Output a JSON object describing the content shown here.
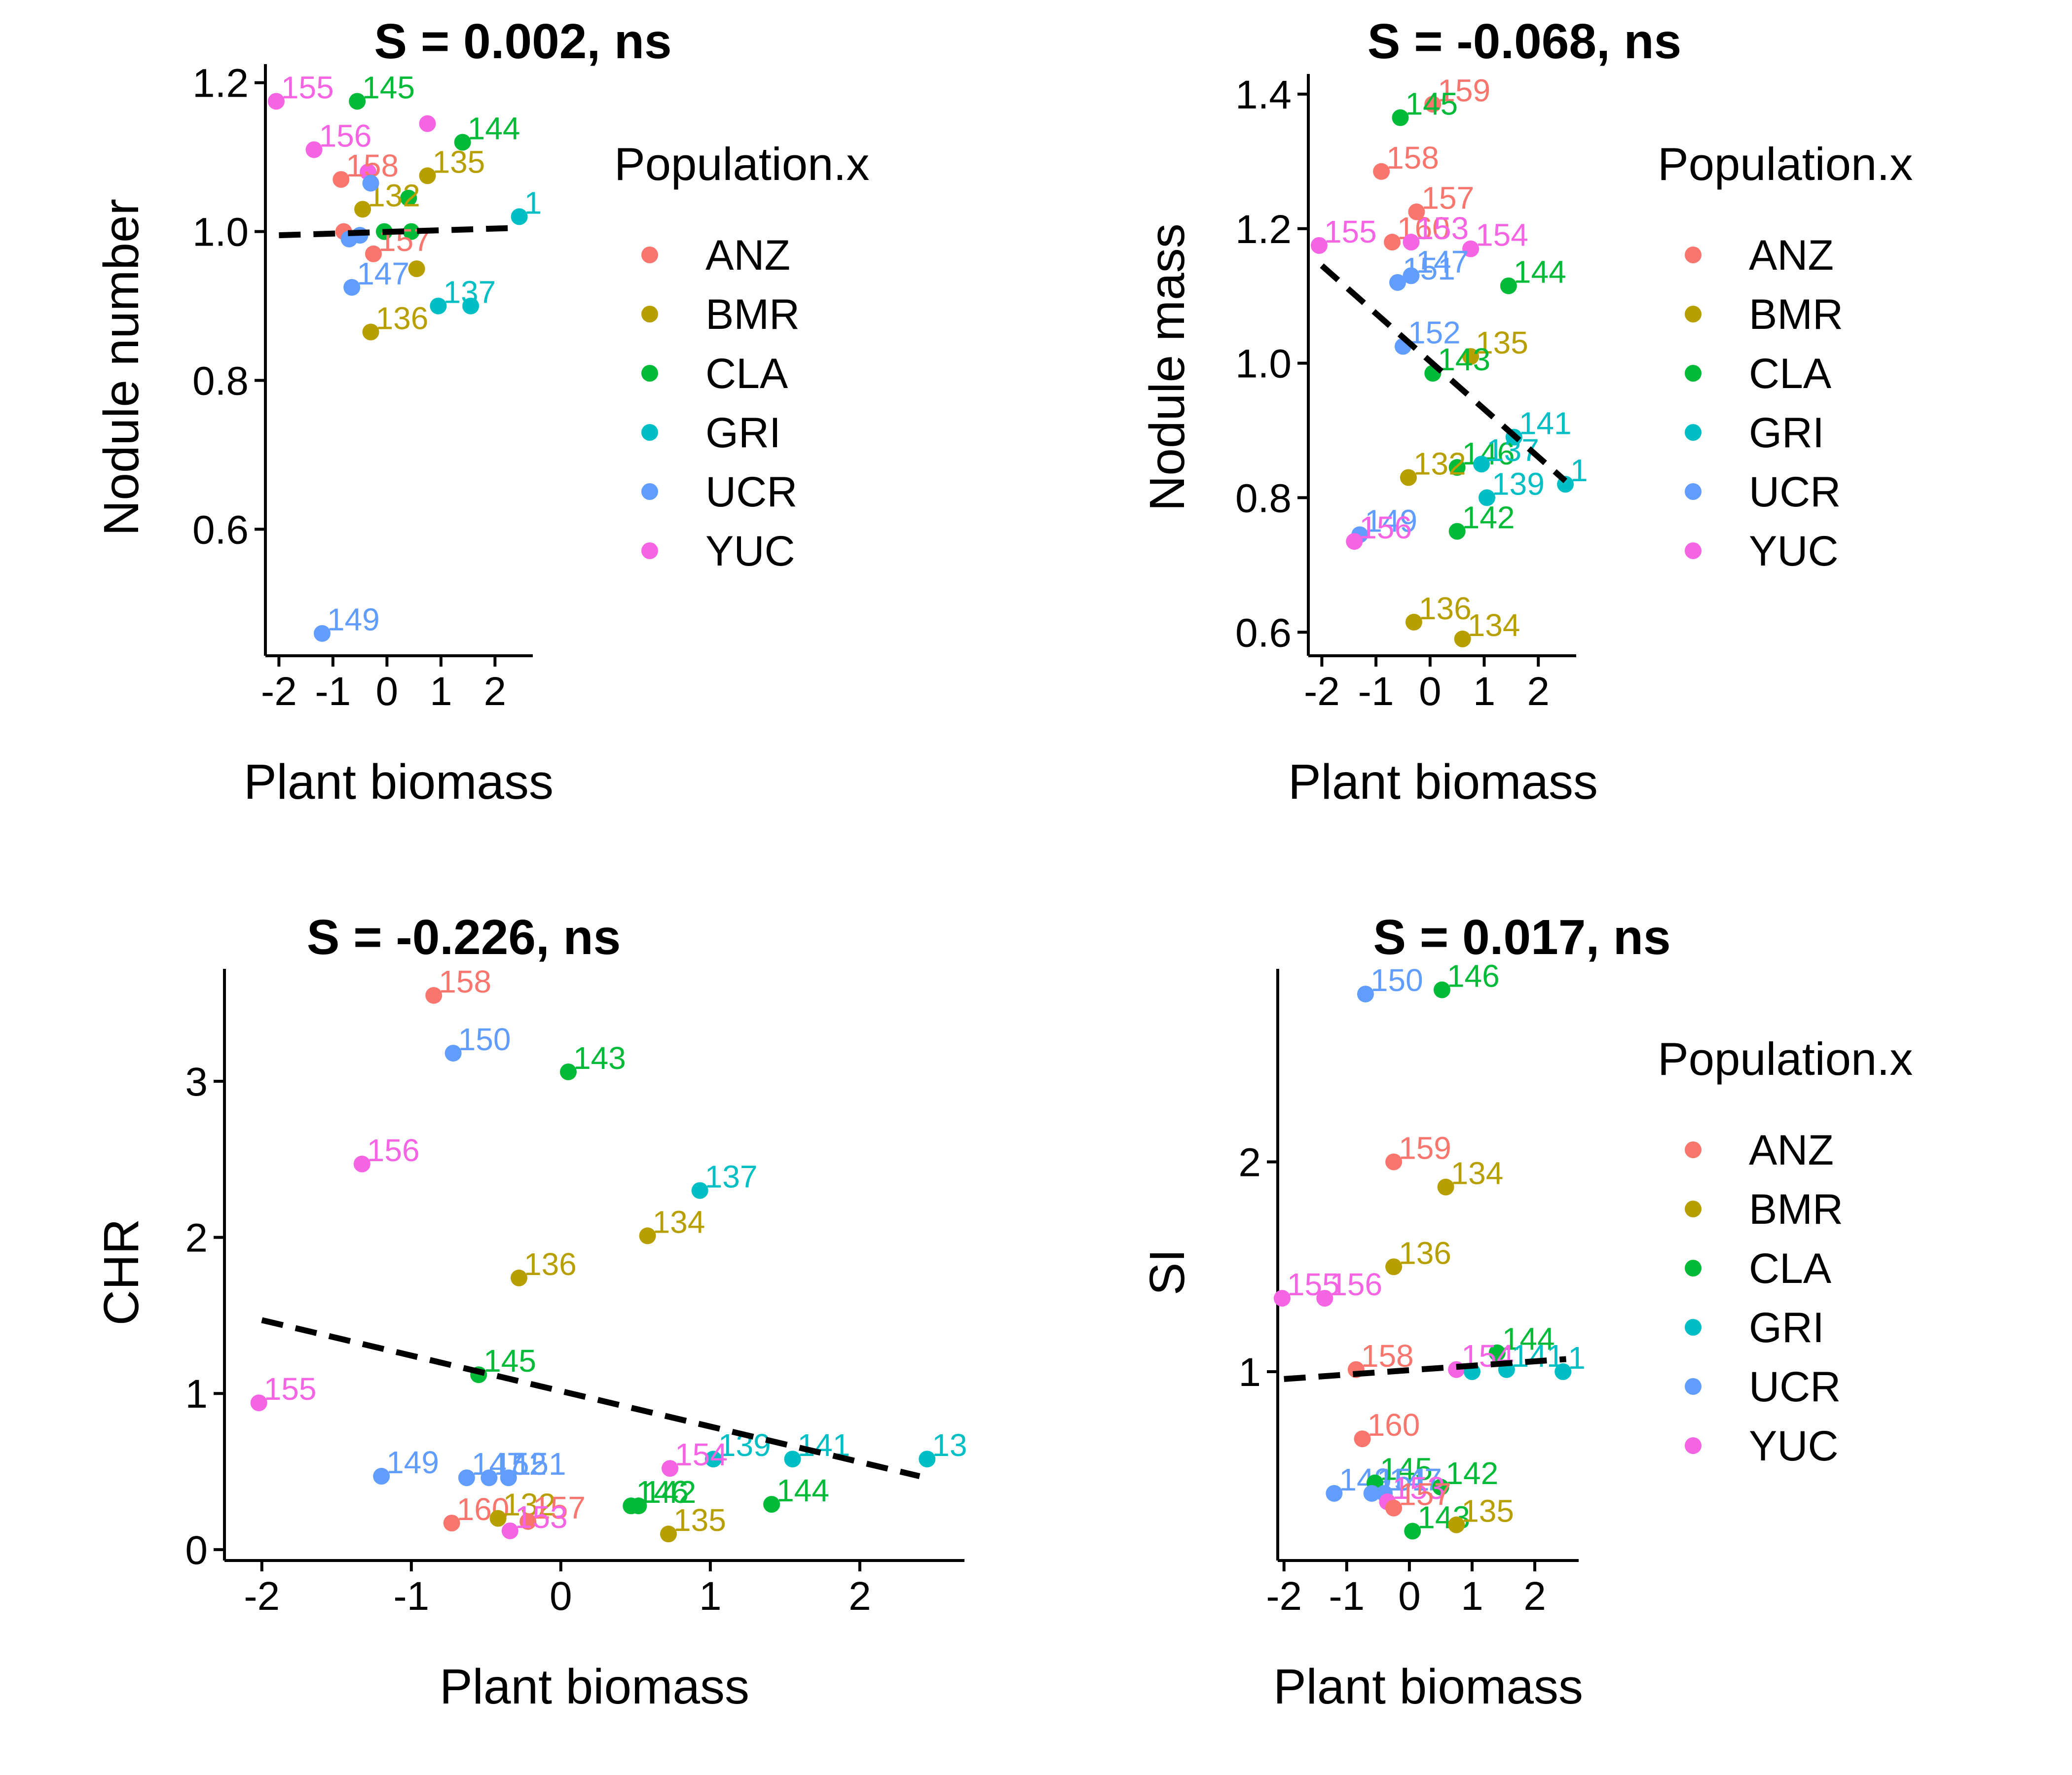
{
  "chart_data": [
    {
      "id": "p1",
      "type": "scatter",
      "title": "S = 0.002, ns",
      "xlabel": "Plant biomass",
      "ylabel": "Nodule number",
      "xlim": [
        -2.25,
        2.7
      ],
      "ylim": [
        0.43,
        1.225
      ],
      "xticks": [
        -2,
        -1,
        0,
        1,
        2
      ],
      "xtick_labels": [
        "-2",
        "-1",
        "0",
        "1",
        "2"
      ],
      "yticks": [
        0.6,
        0.8,
        1.0,
        1.2
      ],
      "ytick_labels": [
        "0.6",
        "0.8",
        "1.0",
        "1.2"
      ],
      "trend": {
        "x": [
          -2.0,
          2.45
        ],
        "y": [
          0.995,
          1.005
        ]
      },
      "legend": {
        "title": "Population.x",
        "items": [
          {
            "label": "ANZ",
            "color": "#F8766D"
          },
          {
            "label": "BMR",
            "color": "#B79F00"
          },
          {
            "label": "CLA",
            "color": "#00BA38"
          },
          {
            "label": "GRI",
            "color": "#00BFC4"
          },
          {
            "label": "UCR",
            "color": "#619CFF"
          },
          {
            "label": "YUC",
            "color": "#F564E3"
          }
        ]
      },
      "points": [
        {
          "x": -2.05,
          "y": 1.175,
          "label": "155",
          "group": "YUC"
        },
        {
          "x": -1.35,
          "y": 1.11,
          "label": "156",
          "group": "YUC"
        },
        {
          "x": 0.75,
          "y": 1.145,
          "label": "",
          "group": "YUC"
        },
        {
          "x": -0.35,
          "y": 1.08,
          "label": "",
          "group": "YUC"
        },
        {
          "x": -0.55,
          "y": 1.175,
          "label": "145",
          "group": "CLA"
        },
        {
          "x": 1.4,
          "y": 1.12,
          "label": "144",
          "group": "CLA"
        },
        {
          "x": -0.05,
          "y": 1.0,
          "label": "",
          "group": "CLA"
        },
        {
          "x": 0.4,
          "y": 1.045,
          "label": "",
          "group": "CLA"
        },
        {
          "x": 0.45,
          "y": 1.0,
          "label": "",
          "group": "CLA"
        },
        {
          "x": 0.75,
          "y": 1.075,
          "label": "135",
          "group": "BMR"
        },
        {
          "x": -0.45,
          "y": 1.03,
          "label": "132",
          "group": "BMR"
        },
        {
          "x": 0.55,
          "y": 0.95,
          "label": "",
          "group": "BMR"
        },
        {
          "x": -0.3,
          "y": 0.865,
          "label": "136",
          "group": "BMR"
        },
        {
          "x": -0.85,
          "y": 1.07,
          "label": "158",
          "group": "ANZ"
        },
        {
          "x": -0.25,
          "y": 0.97,
          "label": "157",
          "group": "ANZ"
        },
        {
          "x": -0.8,
          "y": 1.0,
          "label": "",
          "group": "ANZ"
        },
        {
          "x": -0.3,
          "y": 1.065,
          "label": "",
          "group": "UCR"
        },
        {
          "x": -0.7,
          "y": 0.99,
          "label": "",
          "group": "UCR"
        },
        {
          "x": -0.5,
          "y": 0.995,
          "label": "",
          "group": "UCR"
        },
        {
          "x": -0.65,
          "y": 0.925,
          "label": "147",
          "group": "UCR"
        },
        {
          "x": -1.2,
          "y": 0.46,
          "label": "149",
          "group": "UCR"
        },
        {
          "x": 2.45,
          "y": 1.02,
          "label": "1",
          "group": "GRI"
        },
        {
          "x": 0.95,
          "y": 0.9,
          "label": "137",
          "group": "GRI"
        },
        {
          "x": 1.55,
          "y": 0.9,
          "label": "",
          "group": "GRI"
        }
      ]
    },
    {
      "id": "p2",
      "type": "scatter",
      "title": "S = -0.068, ns",
      "xlabel": "Plant biomass",
      "ylabel": "Nodule mass",
      "xlim": [
        -2.25,
        2.7
      ],
      "ylim": [
        0.565,
        1.43
      ],
      "xticks": [
        -2,
        -1,
        0,
        1,
        2
      ],
      "xtick_labels": [
        "-2",
        "-1",
        "0",
        "1",
        "2"
      ],
      "yticks": [
        0.6,
        0.8,
        1.0,
        1.2,
        1.4
      ],
      "ytick_labels": [
        "0.6",
        "0.8",
        "1.0",
        "1.2",
        "1.4"
      ],
      "trend": {
        "x": [
          -2.0,
          2.5
        ],
        "y": [
          1.145,
          0.825
        ]
      },
      "legend": {
        "title": "Population.x",
        "items": [
          {
            "label": "ANZ",
            "color": "#F8766D"
          },
          {
            "label": "BMR",
            "color": "#B79F00"
          },
          {
            "label": "CLA",
            "color": "#00BA38"
          },
          {
            "label": "GRI",
            "color": "#00BFC4"
          },
          {
            "label": "UCR",
            "color": "#619CFF"
          },
          {
            "label": "YUC",
            "color": "#F564E3"
          }
        ]
      },
      "points": [
        {
          "x": 0.05,
          "y": 1.385,
          "label": "159",
          "group": "ANZ"
        },
        {
          "x": -0.55,
          "y": 1.365,
          "label": "145",
          "group": "CLA"
        },
        {
          "x": -0.9,
          "y": 1.285,
          "label": "158",
          "group": "ANZ"
        },
        {
          "x": -0.25,
          "y": 1.225,
          "label": "157",
          "group": "ANZ"
        },
        {
          "x": -2.05,
          "y": 1.175,
          "label": "155",
          "group": "YUC"
        },
        {
          "x": -0.7,
          "y": 1.18,
          "label": "160",
          "group": "ANZ"
        },
        {
          "x": -0.35,
          "y": 1.18,
          "label": "153",
          "group": "YUC"
        },
        {
          "x": 0.75,
          "y": 1.17,
          "label": "154",
          "group": "YUC"
        },
        {
          "x": -0.6,
          "y": 1.12,
          "label": "151",
          "group": "UCR"
        },
        {
          "x": -0.35,
          "y": 1.13,
          "label": "147",
          "group": "UCR"
        },
        {
          "x": 1.45,
          "y": 1.115,
          "label": "144",
          "group": "CLA"
        },
        {
          "x": -0.5,
          "y": 1.025,
          "label": "152",
          "group": "UCR"
        },
        {
          "x": 0.75,
          "y": 1.01,
          "label": "135",
          "group": "BMR"
        },
        {
          "x": 0.05,
          "y": 0.985,
          "label": "143",
          "group": "CLA"
        },
        {
          "x": 1.55,
          "y": 0.89,
          "label": "141",
          "group": "GRI"
        },
        {
          "x": 0.5,
          "y": 0.845,
          "label": "146",
          "group": "CLA"
        },
        {
          "x": 0.95,
          "y": 0.85,
          "label": "137",
          "group": "GRI"
        },
        {
          "x": -0.4,
          "y": 0.83,
          "label": "132",
          "group": "BMR"
        },
        {
          "x": 2.5,
          "y": 0.82,
          "label": "1",
          "group": "GRI"
        },
        {
          "x": 1.05,
          "y": 0.8,
          "label": "139",
          "group": "GRI"
        },
        {
          "x": 0.5,
          "y": 0.75,
          "label": "142",
          "group": "CLA"
        },
        {
          "x": -1.3,
          "y": 0.745,
          "label": "149",
          "group": "UCR"
        },
        {
          "x": -1.4,
          "y": 0.735,
          "label": "156",
          "group": "YUC"
        },
        {
          "x": -0.3,
          "y": 0.615,
          "label": "136",
          "group": "BMR"
        },
        {
          "x": 0.6,
          "y": 0.59,
          "label": "134",
          "group": "BMR"
        }
      ]
    },
    {
      "id": "p3",
      "type": "scatter",
      "title": "S = -0.226, ns",
      "xlabel": "Plant biomass",
      "ylabel": "CHR",
      "xlim": [
        -2.25,
        2.7
      ],
      "ylim": [
        -0.07,
        3.72
      ],
      "xticks": [
        -2,
        -1,
        0,
        1,
        2
      ],
      "xtick_labels": [
        "-2",
        "-1",
        "0",
        "1",
        "2"
      ],
      "yticks": [
        0,
        1,
        2,
        3
      ],
      "ytick_labels": [
        "0",
        "1",
        "2",
        "3"
      ],
      "trend": {
        "x": [
          -2.0,
          2.4
        ],
        "y": [
          1.47,
          0.47
        ]
      },
      "legend": null,
      "points": [
        {
          "x": -0.85,
          "y": 3.55,
          "label": "158",
          "group": "ANZ"
        },
        {
          "x": -0.72,
          "y": 3.18,
          "label": "150",
          "group": "UCR"
        },
        {
          "x": 0.05,
          "y": 3.06,
          "label": "143",
          "group": "CLA"
        },
        {
          "x": -1.33,
          "y": 2.47,
          "label": "156",
          "group": "YUC"
        },
        {
          "x": 0.93,
          "y": 2.3,
          "label": "137",
          "group": "GRI"
        },
        {
          "x": 0.58,
          "y": 2.01,
          "label": "134",
          "group": "BMR"
        },
        {
          "x": -0.28,
          "y": 1.74,
          "label": "136",
          "group": "BMR"
        },
        {
          "x": -0.55,
          "y": 1.12,
          "label": "145",
          "group": "CLA"
        },
        {
          "x": -2.02,
          "y": 0.94,
          "label": "155",
          "group": "YUC"
        },
        {
          "x": 2.45,
          "y": 0.58,
          "label": "13",
          "group": "GRI"
        },
        {
          "x": 1.55,
          "y": 0.58,
          "label": "141",
          "group": "GRI"
        },
        {
          "x": 1.02,
          "y": 0.58,
          "label": "139",
          "group": "GRI"
        },
        {
          "x": 0.73,
          "y": 0.52,
          "label": "154",
          "group": "YUC"
        },
        {
          "x": -1.2,
          "y": 0.47,
          "label": "149",
          "group": "UCR"
        },
        {
          "x": -0.63,
          "y": 0.46,
          "label": "147",
          "group": "UCR"
        },
        {
          "x": -0.48,
          "y": 0.46,
          "label": "152",
          "group": "UCR"
        },
        {
          "x": -0.35,
          "y": 0.46,
          "label": "151",
          "group": "UCR"
        },
        {
          "x": 0.47,
          "y": 0.28,
          "label": "146",
          "group": "CLA"
        },
        {
          "x": 0.52,
          "y": 0.28,
          "label": "142",
          "group": "CLA"
        },
        {
          "x": 1.41,
          "y": 0.29,
          "label": "144",
          "group": "CLA"
        },
        {
          "x": -0.73,
          "y": 0.17,
          "label": "160",
          "group": "ANZ"
        },
        {
          "x": -0.42,
          "y": 0.2,
          "label": "132",
          "group": "BMR"
        },
        {
          "x": -0.22,
          "y": 0.18,
          "label": "157",
          "group": "ANZ"
        },
        {
          "x": -0.34,
          "y": 0.12,
          "label": "153",
          "group": "YUC"
        },
        {
          "x": 0.72,
          "y": 0.1,
          "label": "135",
          "group": "BMR"
        }
      ]
    },
    {
      "id": "p4",
      "type": "scatter",
      "title": "S = 0.017, ns",
      "xlabel": "Plant biomass",
      "ylabel": "SI",
      "xlim": [
        -2.1,
        2.7
      ],
      "ylim": [
        0.1,
        2.92
      ],
      "xticks": [
        -2,
        -1,
        0,
        1,
        2
      ],
      "xtick_labels": [
        "-2",
        "-1",
        "0",
        "1",
        "2"
      ],
      "yticks": [
        1,
        2
      ],
      "ytick_labels": [
        "1",
        "2"
      ],
      "trend": {
        "x": [
          -2.0,
          2.5
        ],
        "y": [
          0.965,
          1.06
        ]
      },
      "legend": {
        "title": "Population.x",
        "items": [
          {
            "label": "ANZ",
            "color": "#F8766D"
          },
          {
            "label": "BMR",
            "color": "#B79F00"
          },
          {
            "label": "CLA",
            "color": "#00BA38"
          },
          {
            "label": "GRI",
            "color": "#00BFC4"
          },
          {
            "label": "UCR",
            "color": "#619CFF"
          },
          {
            "label": "YUC",
            "color": "#F564E3"
          }
        ]
      },
      "points": [
        {
          "x": -0.7,
          "y": 2.8,
          "label": "150",
          "group": "UCR"
        },
        {
          "x": 0.52,
          "y": 2.82,
          "label": "146",
          "group": "CLA"
        },
        {
          "x": -0.25,
          "y": 2.0,
          "label": "159",
          "group": "ANZ"
        },
        {
          "x": 0.58,
          "y": 1.88,
          "label": "134",
          "group": "BMR"
        },
        {
          "x": -0.25,
          "y": 1.5,
          "label": "136",
          "group": "BMR"
        },
        {
          "x": -2.03,
          "y": 1.35,
          "label": "155",
          "group": "YUC"
        },
        {
          "x": -1.35,
          "y": 1.35,
          "label": "156",
          "group": "YUC"
        },
        {
          "x": -0.85,
          "y": 1.01,
          "label": "158",
          "group": "ANZ"
        },
        {
          "x": 1.4,
          "y": 1.09,
          "label": "144",
          "group": "CLA"
        },
        {
          "x": 0.75,
          "y": 1.01,
          "label": "154",
          "group": "YUC"
        },
        {
          "x": 1.0,
          "y": 1.0,
          "label": "",
          "group": "GRI"
        },
        {
          "x": 1.55,
          "y": 1.01,
          "label": "141",
          "group": "GRI"
        },
        {
          "x": 2.45,
          "y": 1.0,
          "label": "1",
          "group": "GRI"
        },
        {
          "x": -0.75,
          "y": 0.68,
          "label": "160",
          "group": "ANZ"
        },
        {
          "x": -1.2,
          "y": 0.42,
          "label": "149",
          "group": "UCR"
        },
        {
          "x": -0.55,
          "y": 0.47,
          "label": "145",
          "group": "CLA"
        },
        {
          "x": -0.6,
          "y": 0.42,
          "label": "151",
          "group": "UCR"
        },
        {
          "x": -0.4,
          "y": 0.42,
          "label": "147",
          "group": "UCR"
        },
        {
          "x": 0.5,
          "y": 0.45,
          "label": "142",
          "group": "CLA"
        },
        {
          "x": -0.35,
          "y": 0.38,
          "label": "153",
          "group": "YUC"
        },
        {
          "x": -0.25,
          "y": 0.35,
          "label": "157",
          "group": "ANZ"
        },
        {
          "x": 0.05,
          "y": 0.24,
          "label": "143",
          "group": "CLA"
        },
        {
          "x": 0.75,
          "y": 0.27,
          "label": "135",
          "group": "BMR"
        }
      ]
    }
  ]
}
